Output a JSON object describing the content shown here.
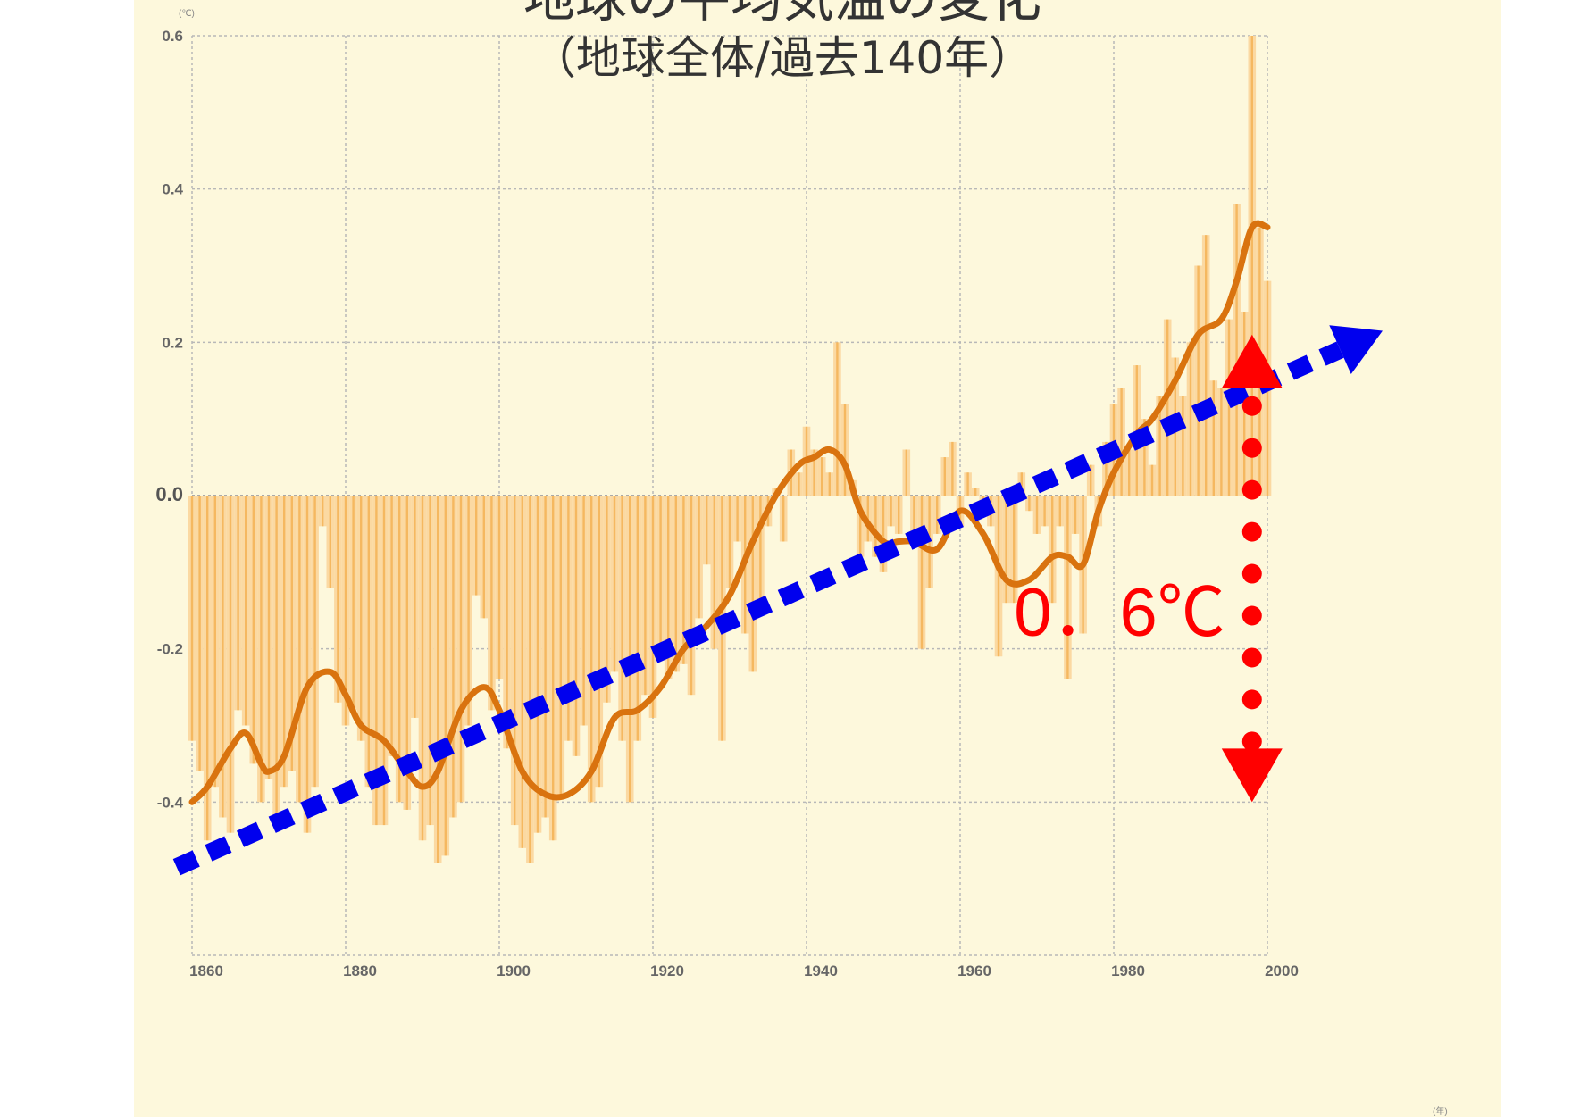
{
  "chart_data": {
    "type": "bar",
    "title": "地球の平均気温の変化",
    "subtitle": "（地球全体/過去140年）",
    "y_unit": "(℃)",
    "x_unit": "(年)",
    "ylim": [
      -0.6,
      0.6
    ],
    "xlim": [
      1860,
      2000
    ],
    "y_ticks": [
      {
        "value": 0.6,
        "label": "0.6"
      },
      {
        "value": 0.4,
        "label": "0.4"
      },
      {
        "value": 0.2,
        "label": "0.2"
      },
      {
        "value": 0.0,
        "label": "0.0"
      },
      {
        "value": -0.2,
        "label": "-0.2"
      },
      {
        "value": -0.4,
        "label": "-0.4"
      }
    ],
    "x_ticks": [
      {
        "value": 1860,
        "label": "1860"
      },
      {
        "value": 1880,
        "label": "1880"
      },
      {
        "value": 1900,
        "label": "1900"
      },
      {
        "value": 1920,
        "label": "1920"
      },
      {
        "value": 1940,
        "label": "1940"
      },
      {
        "value": 1960,
        "label": "1960"
      },
      {
        "value": 1980,
        "label": "1980"
      },
      {
        "value": 2000,
        "label": "2000"
      }
    ],
    "grid": true,
    "bar_color": "#f5b860",
    "bar_fill_color": "#fbd9a2",
    "smooth_color": "#d9730f",
    "background_color": "#fdf8dc",
    "bars": {
      "start_year": 1860,
      "values": [
        -0.32,
        -0.36,
        -0.45,
        -0.38,
        -0.42,
        -0.44,
        -0.28,
        -0.3,
        -0.35,
        -0.4,
        -0.37,
        -0.43,
        -0.38,
        -0.36,
        -0.4,
        -0.44,
        -0.38,
        -0.04,
        -0.12,
        -0.27,
        -0.3,
        -0.28,
        -0.32,
        -0.38,
        -0.43,
        -0.43,
        -0.34,
        -0.4,
        -0.41,
        -0.29,
        -0.45,
        -0.43,
        -0.48,
        -0.47,
        -0.42,
        -0.4,
        -0.3,
        -0.13,
        -0.16,
        -0.28,
        -0.24,
        -0.33,
        -0.43,
        -0.46,
        -0.48,
        -0.44,
        -0.42,
        -0.45,
        -0.39,
        -0.32,
        -0.34,
        -0.3,
        -0.4,
        -0.38,
        -0.27,
        -0.23,
        -0.32,
        -0.4,
        -0.32,
        -0.26,
        -0.29,
        -0.2,
        -0.24,
        -0.23,
        -0.22,
        -0.26,
        -0.16,
        -0.09,
        -0.2,
        -0.32,
        -0.12,
        -0.06,
        -0.18,
        -0.23,
        -0.14,
        -0.04,
        0.01,
        -0.06,
        0.06,
        0.03,
        0.09,
        0.06,
        0.05,
        0.03,
        0.2,
        0.12,
        0.02,
        -0.08,
        -0.06,
        -0.08,
        -0.1,
        -0.04,
        -0.05,
        0.06,
        -0.06,
        -0.2,
        -0.12,
        -0.05,
        0.05,
        0.07,
        -0.04,
        0.03,
        0.01,
        -0.01,
        -0.04,
        -0.21,
        -0.14,
        -0.14,
        0.03,
        -0.02,
        -0.05,
        -0.04,
        -0.14,
        -0.04,
        -0.24,
        -0.05,
        -0.18,
        0.04,
        -0.04,
        0.07,
        0.12,
        0.14,
        0.06,
        0.17,
        0.1,
        0.04,
        0.13,
        0.23,
        0.18,
        0.13,
        0.2,
        0.3,
        0.34,
        0.15,
        0.14,
        0.23,
        0.38,
        0.24,
        0.6,
        0.35,
        0.28
      ]
    },
    "smoothed": {
      "x": [
        1860,
        1862,
        1865,
        1867,
        1869,
        1870,
        1872,
        1875,
        1878,
        1880,
        1882,
        1885,
        1888,
        1890,
        1892,
        1895,
        1898,
        1900,
        1903,
        1906,
        1909,
        1912,
        1915,
        1918,
        1921,
        1924,
        1927,
        1930,
        1933,
        1936,
        1939,
        1941,
        1943,
        1945,
        1947,
        1950,
        1952,
        1954,
        1957,
        1960,
        1963,
        1966,
        1969,
        1972,
        1974,
        1976,
        1978,
        1980,
        1983,
        1985,
        1988,
        1991,
        1994,
        1996,
        1998,
        2000
      ],
      "y": [
        -0.4,
        -0.38,
        -0.33,
        -0.31,
        -0.35,
        -0.36,
        -0.34,
        -0.25,
        -0.23,
        -0.26,
        -0.3,
        -0.32,
        -0.36,
        -0.38,
        -0.36,
        -0.28,
        -0.25,
        -0.28,
        -0.36,
        -0.39,
        -0.39,
        -0.36,
        -0.29,
        -0.28,
        -0.25,
        -0.2,
        -0.17,
        -0.13,
        -0.06,
        0.0,
        0.04,
        0.05,
        0.06,
        0.04,
        -0.02,
        -0.06,
        -0.06,
        -0.06,
        -0.07,
        -0.02,
        -0.05,
        -0.11,
        -0.11,
        -0.08,
        -0.08,
        -0.09,
        -0.02,
        0.03,
        0.08,
        0.1,
        0.15,
        0.21,
        0.23,
        0.28,
        0.35,
        0.35
      ]
    },
    "annotations": {
      "trend_color": "#0000ee",
      "trend_start": [
        1858,
        -0.485
      ],
      "trend_end": [
        2015,
        0.215
      ],
      "range_color": "#ff0000",
      "range_year": 1998,
      "range_from": -0.4,
      "range_to": 0.21,
      "range_label": "0．6℃"
    }
  }
}
